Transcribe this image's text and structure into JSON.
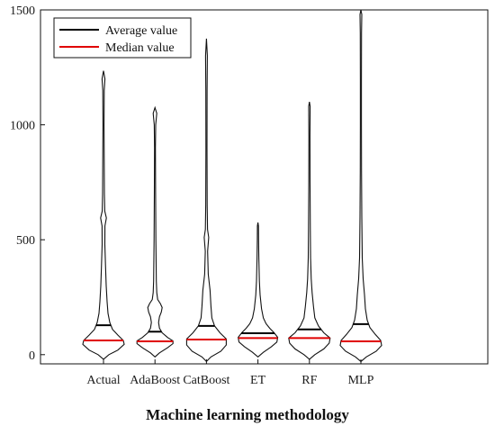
{
  "chart_data": {
    "type": "violin",
    "xlabel": "Machine learning methodology",
    "ylabel": "",
    "ylim": [
      -40,
      1500
    ],
    "yticks": [
      0,
      500,
      1000,
      1500
    ],
    "categories": [
      "Actual",
      "AdaBoost",
      "CatBoost",
      "ET",
      "RF",
      "MLP"
    ],
    "series": [
      {
        "category": "Actual",
        "mean": 128,
        "median": 62,
        "min": -20,
        "max": 1235
      },
      {
        "category": "AdaBoost",
        "mean": 100,
        "median": 58,
        "min": -10,
        "max": 1075
      },
      {
        "category": "CatBoost",
        "mean": 125,
        "median": 66,
        "min": -30,
        "max": 1375
      },
      {
        "category": "ET",
        "mean": 93,
        "median": 72,
        "min": -10,
        "max": 575
      },
      {
        "category": "RF",
        "mean": 110,
        "median": 72,
        "min": -20,
        "max": 1100
      },
      {
        "category": "MLP",
        "mean": 133,
        "median": 58,
        "min": -30,
        "max": 1500
      }
    ],
    "legend": {
      "placement": "top-left",
      "entries": [
        {
          "label": "Average value",
          "color": "#000000"
        },
        {
          "label": "Median value",
          "color": "#e00000"
        }
      ]
    },
    "grid": false
  }
}
